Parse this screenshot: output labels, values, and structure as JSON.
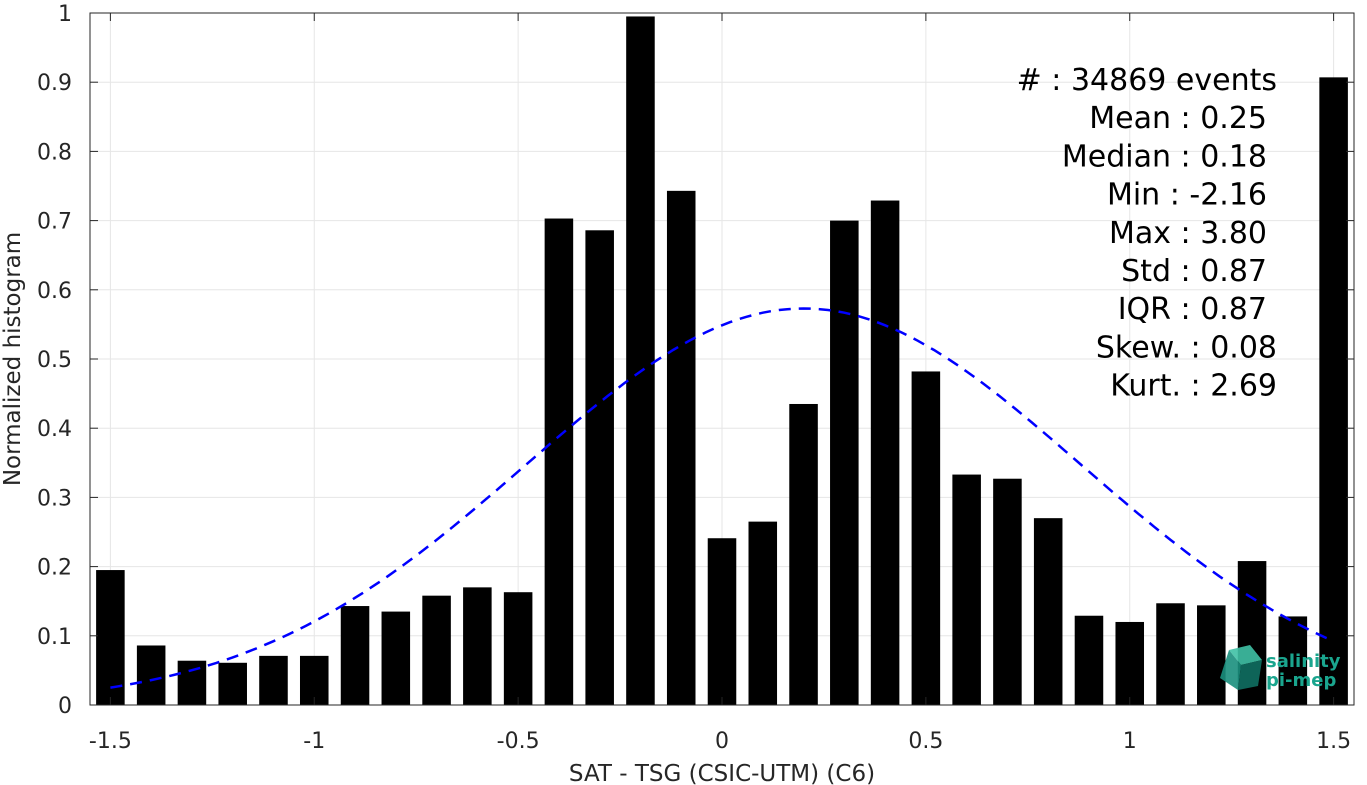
{
  "chart_data": {
    "type": "bar",
    "xlabel": "SAT - TSG (CSIC-UTM) (C6)",
    "ylabel": "Normalized histogram",
    "xlim": [
      -1.55,
      1.55
    ],
    "ylim": [
      0,
      1
    ],
    "grid": true,
    "x_ticks": [
      -1.5,
      -1,
      -0.5,
      0,
      0.5,
      1,
      1.5
    ],
    "x_tick_labels": [
      "-1.5",
      "-1",
      "-0.5",
      "0",
      "0.5",
      "1",
      "1.5"
    ],
    "y_ticks": [
      0,
      0.1,
      0.2,
      0.3,
      0.4,
      0.5,
      0.6,
      0.7,
      0.8,
      0.9,
      1
    ],
    "y_tick_labels": [
      "0",
      "0.1",
      "0.2",
      "0.3",
      "0.4",
      "0.5",
      "0.6",
      "0.7",
      "0.8",
      "0.9",
      "1"
    ],
    "bar_color": "#000000",
    "bin_width": 0.1,
    "bar_width": 0.07,
    "x": [
      -1.5,
      -1.4,
      -1.3,
      -1.2,
      -1.1,
      -1.0,
      -0.9,
      -0.8,
      -0.7,
      -0.6,
      -0.5,
      -0.4,
      -0.3,
      -0.2,
      -0.1,
      0.0,
      0.1,
      0.2,
      0.3,
      0.4,
      0.5,
      0.6,
      0.7,
      0.8,
      0.9,
      1.0,
      1.1,
      1.2,
      1.3,
      1.4,
      1.5
    ],
    "values": [
      0.195,
      0.086,
      0.064,
      0.061,
      0.071,
      0.071,
      0.143,
      0.135,
      0.158,
      0.17,
      0.163,
      0.703,
      0.686,
      0.995,
      0.743,
      0.241,
      0.265,
      0.435,
      0.7,
      0.729,
      0.482,
      0.333,
      0.327,
      0.27,
      0.129,
      0.12,
      0.147,
      0.144,
      0.208,
      0.128,
      0.907
    ],
    "fit": {
      "type": "gaussian",
      "style": "dashed",
      "color": "#0000ff",
      "mean": 0.2,
      "std": 0.68,
      "peak": 0.573,
      "x_range": [
        -1.5,
        1.5
      ]
    },
    "stats": [
      "#  : 34869 events",
      "Mean : 0.25",
      "Median : 0.18",
      "Min : -2.16",
      "Max : 3.80",
      "Std : 0.87",
      "IQR : 0.87",
      "Skew. : 0.08",
      "Kurt. : 2.69"
    ]
  },
  "logo": {
    "line1": "salinity",
    "line2": "pi-mep",
    "color": "#1aa58e"
  }
}
